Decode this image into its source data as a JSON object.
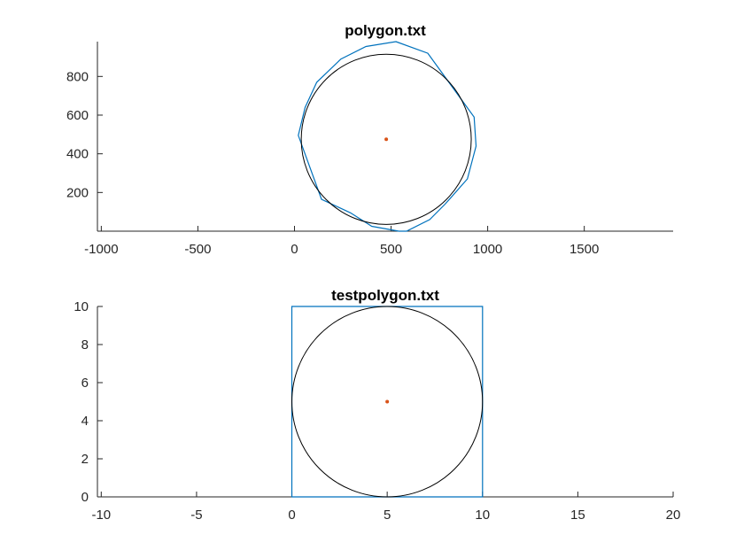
{
  "chart_data": [
    {
      "type": "line",
      "title": "polygon.txt",
      "xlabel": "",
      "ylabel": "",
      "xlim": [
        -1020,
        1960
      ],
      "ylim": [
        0,
        980
      ],
      "x_ticks": [
        -1000,
        -500,
        0,
        500,
        1000,
        1500
      ],
      "x_tick_labels": [
        "-1000",
        "-500",
        "0",
        "500",
        "1000",
        "1500"
      ],
      "y_ticks": [
        200,
        400,
        600,
        800
      ],
      "y_tick_labels": [
        "200",
        "400",
        "600",
        "800"
      ],
      "grid": false,
      "series": [
        {
          "role": "polygon",
          "color": "#0072BD",
          "closed": true,
          "x": [
            525,
            690,
            930,
            940,
            895,
            780,
            700,
            580,
            540,
            400,
            290,
            140,
            20,
            55,
            115,
            240,
            370
          ],
          "y": [
            980,
            920,
            590,
            440,
            270,
            140,
            60,
            0,
            0,
            25,
            95,
            165,
            495,
            640,
            770,
            890,
            955
          ]
        },
        {
          "role": "inscribed-circle",
          "color": "#000000",
          "center": [
            475,
            475
          ],
          "radius": 440
        },
        {
          "role": "center-point",
          "color": "#D95319",
          "x": [
            475
          ],
          "y": [
            475
          ]
        }
      ]
    },
    {
      "type": "line",
      "title": "testpolygon.txt",
      "xlabel": "",
      "ylabel": "",
      "xlim": [
        -10.2,
        20
      ],
      "ylim": [
        0,
        10
      ],
      "x_ticks": [
        -10,
        -5,
        0,
        5,
        10,
        15,
        20
      ],
      "x_tick_labels": [
        "-10",
        "-5",
        "0",
        "5",
        "10",
        "15",
        "20"
      ],
      "y_ticks": [
        0,
        2,
        4,
        6,
        8,
        10
      ],
      "y_tick_labels": [
        "0",
        "2",
        "4",
        "6",
        "8",
        "10"
      ],
      "grid": false,
      "series": [
        {
          "role": "polygon",
          "color": "#0072BD",
          "closed": true,
          "x": [
            0,
            10,
            10,
            0
          ],
          "y": [
            0,
            0,
            10,
            10
          ]
        },
        {
          "role": "inscribed-circle",
          "color": "#000000",
          "center": [
            5,
            5
          ],
          "radius": 5
        },
        {
          "role": "center-point",
          "color": "#D95319",
          "x": [
            5
          ],
          "y": [
            5
          ]
        }
      ]
    }
  ]
}
